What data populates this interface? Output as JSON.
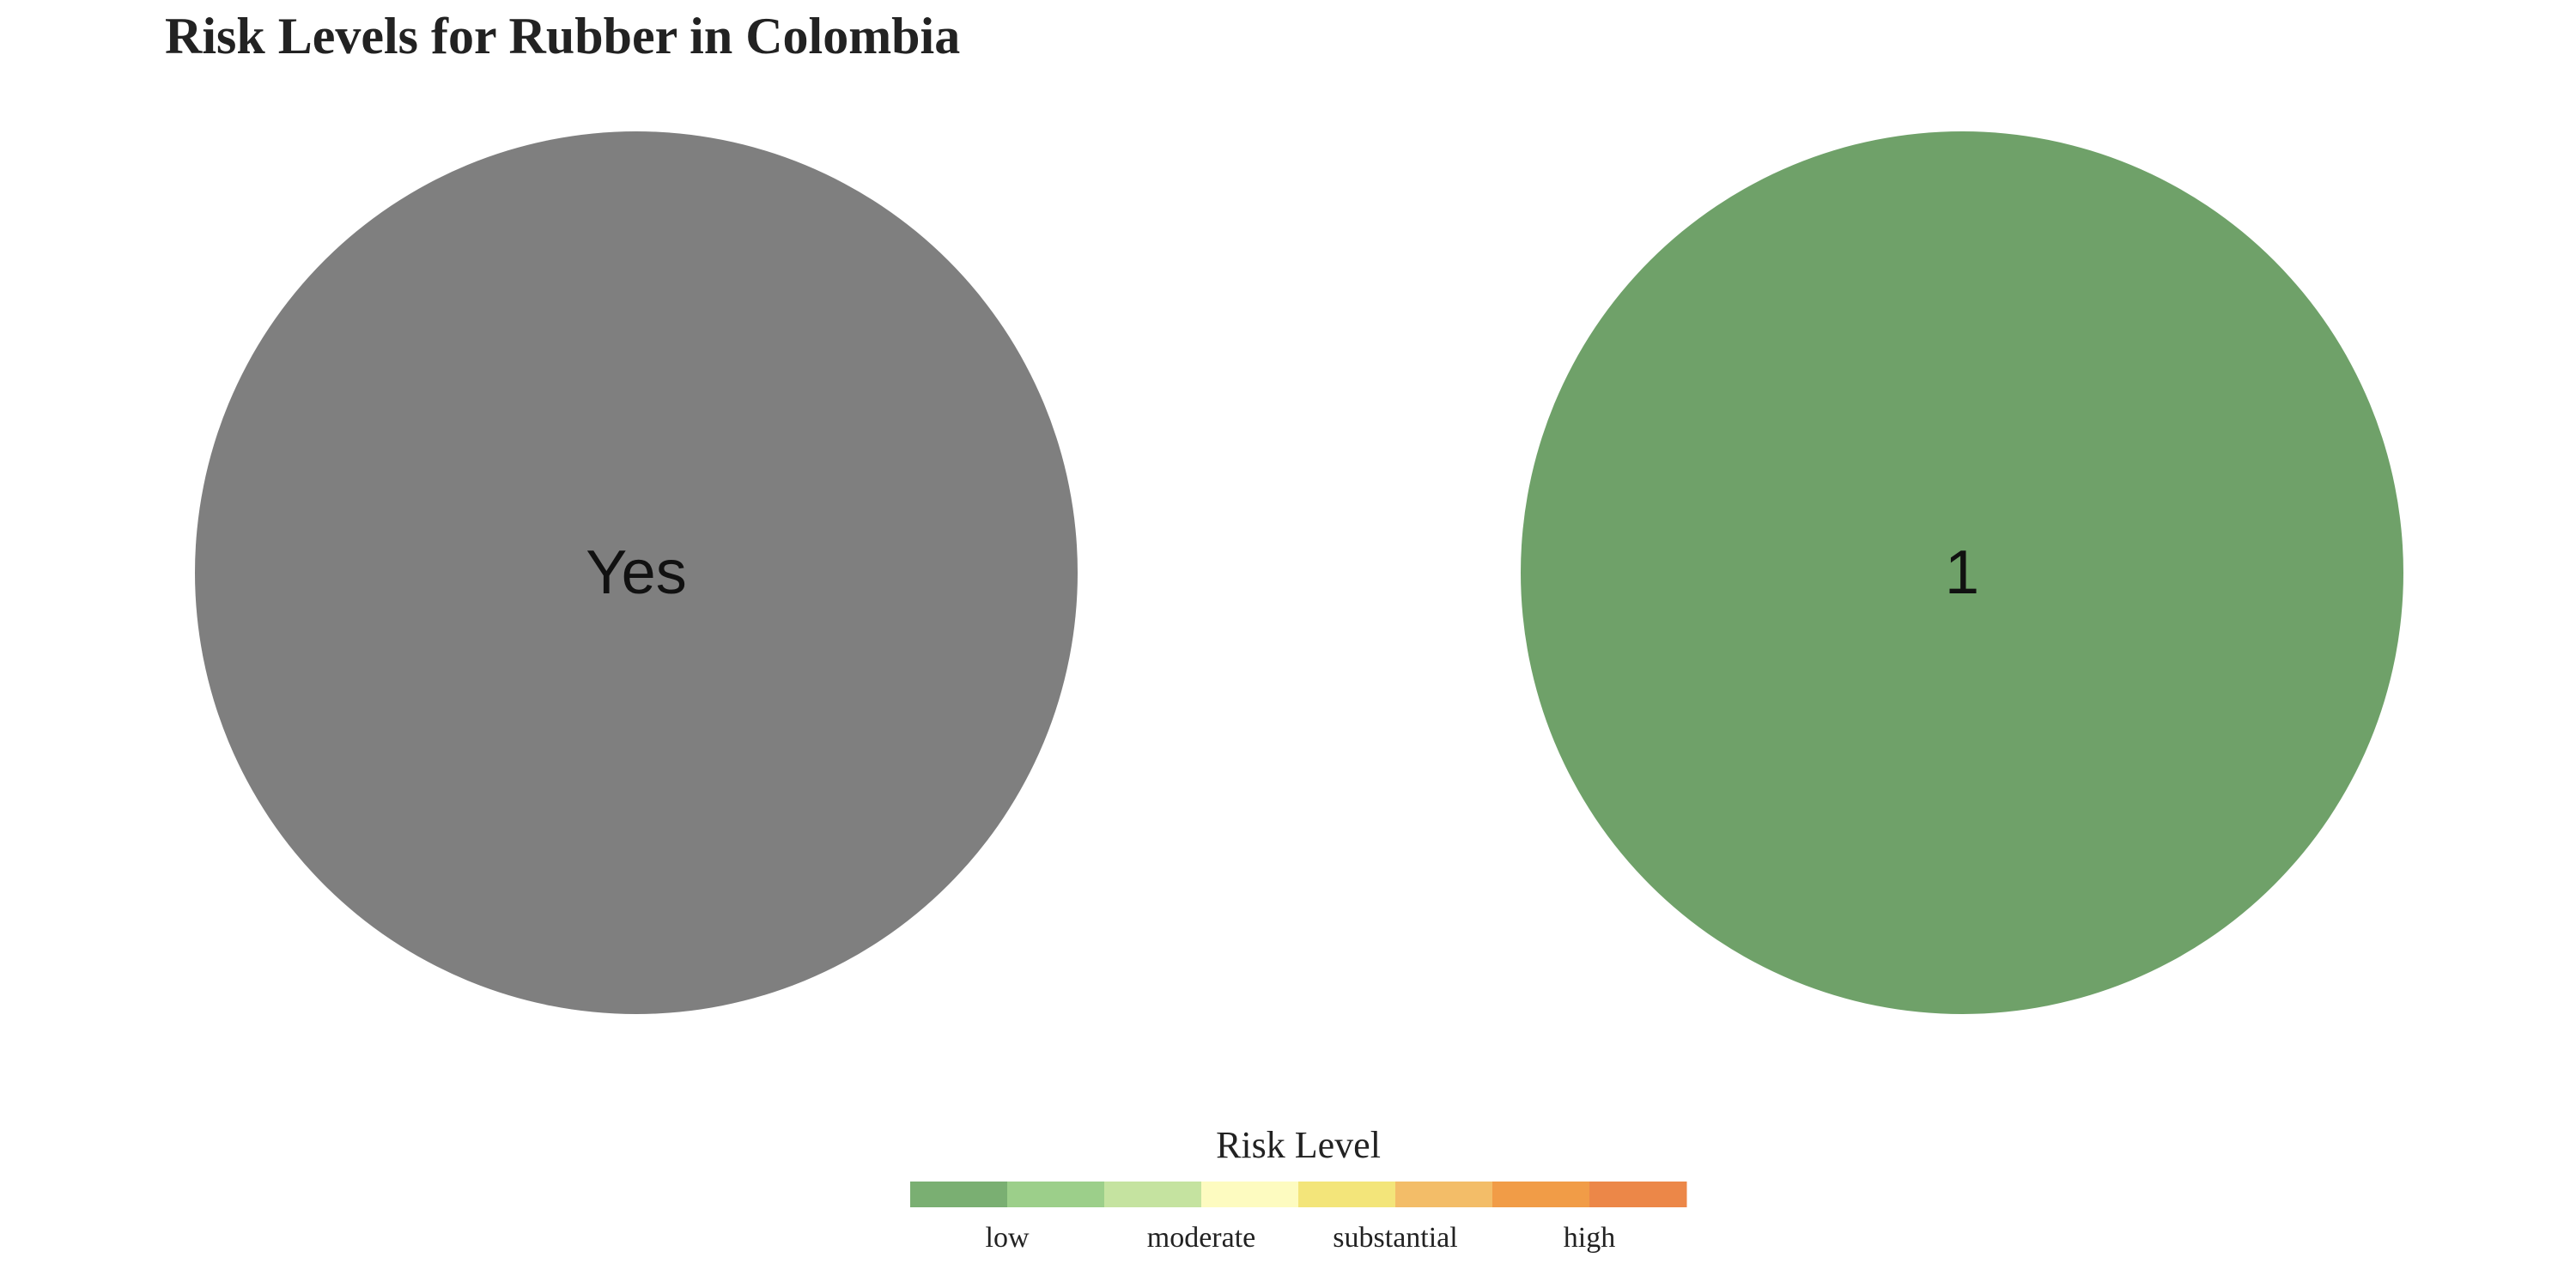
{
  "chart_data": {
    "type": "pie",
    "title": "Risk Levels for Rubber in Colombia",
    "panels": [
      {
        "label": "Yes",
        "value": 1,
        "color": "#7f7f7f"
      },
      {
        "label": "1",
        "value": 1,
        "color": "#6fa169"
      }
    ],
    "legend": {
      "title": "Risk Level",
      "placement": "bottom",
      "colors": [
        "#7aaf72",
        "#9ccf8a",
        "#c5e3a0",
        "#fdfbc0",
        "#f3e57a",
        "#f3bd68",
        "#f19c47",
        "#ec8748"
      ],
      "ticks": [
        "low",
        "moderate",
        "substantial",
        "high"
      ]
    }
  }
}
